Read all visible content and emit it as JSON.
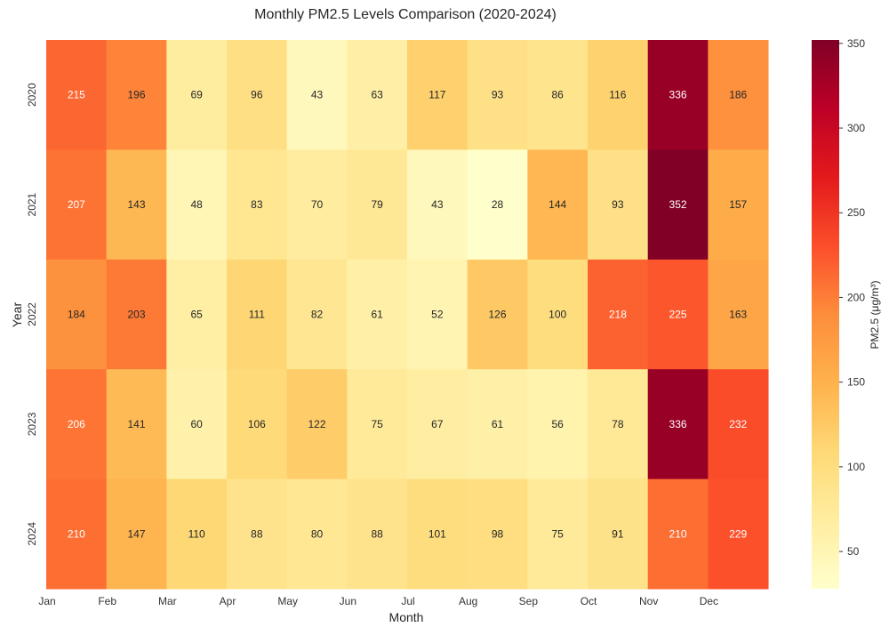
{
  "chart_data": {
    "type": "heatmap",
    "title": "Monthly PM2.5 Levels Comparison (2020-2024)",
    "xlabel": "Month",
    "ylabel": "Year",
    "x_tick_labels": [
      "Jan",
      "Feb",
      "Mar",
      "Apr",
      "May",
      "Jun",
      "Jul",
      "Aug",
      "Sep",
      "Oct",
      "Nov",
      "Dec"
    ],
    "y_tick_labels": [
      "2020",
      "2021",
      "2022",
      "2023",
      "2024"
    ],
    "values": [
      [
        215,
        196,
        69,
        96,
        43,
        63,
        117,
        93,
        86,
        116,
        336,
        186
      ],
      [
        207,
        143,
        48,
        83,
        70,
        79,
        43,
        28,
        144,
        93,
        352,
        157
      ],
      [
        184,
        203,
        65,
        111,
        82,
        61,
        52,
        126,
        100,
        218,
        225,
        163
      ],
      [
        206,
        141,
        60,
        106,
        122,
        75,
        67,
        61,
        56,
        78,
        336,
        232
      ],
      [
        210,
        147,
        110,
        88,
        80,
        88,
        101,
        98,
        75,
        91,
        210,
        229
      ]
    ],
    "colorbar": {
      "label": "PM2.5 (μg/m³)",
      "range": [
        28,
        352
      ],
      "ticks": [
        50,
        100,
        150,
        200,
        250,
        300,
        350
      ],
      "colormap": "YlOrRd"
    },
    "grid": false
  }
}
